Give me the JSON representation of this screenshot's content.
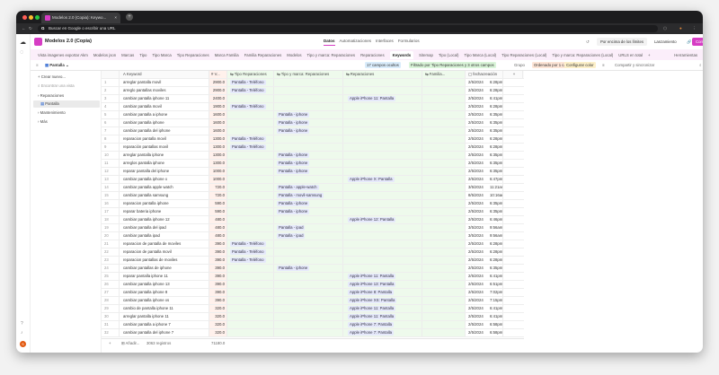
{
  "browser": {
    "tab_title": "Modelos 2.0 (Copia): Keywo...",
    "address": "Buscar en Google o escribir una URL"
  },
  "header": {
    "base_title": "Modelos 2.0 (Copia)",
    "tabs": [
      "Datos",
      "Automatizaciones",
      "Interfaces",
      "Formularios"
    ],
    "limit_label": "Por encima de los límites",
    "launch_label": "Lanzamiento",
    "share_label": "Compartir"
  },
  "tables": {
    "items": [
      "Vista imagenes exportar Akm",
      "Modelos json",
      "Marcas",
      "Tipo",
      "Tipo Marca",
      "Tipo Reparaciones",
      "Marca Familia",
      "Familia Reparaciones",
      "Modelos",
      "Tipo y marca: Reparaciones",
      "Reparaciones",
      "Keywords",
      "Sitemap",
      "Tipo (Local)",
      "Tipo Marca (Local)",
      "Tipo Reparaciones (Local)",
      "Tipo y marca: Reparaciones (Local)",
      "URLS en total"
    ],
    "active": "Keywords",
    "tools_label": "Herramientas"
  },
  "toolbar": {
    "view_name": "Pantalla",
    "hidden": "17 campos ocultos",
    "filter": "Filtrado por Tipo Reparaciones y 3 otros campos",
    "group": "Grupo",
    "sort": "Ordenado por 1 campo",
    "color": "Configurar color",
    "share": "Compartir y sincronizar"
  },
  "sidebar": {
    "create": "Crear nuevo...",
    "search": "Encontrar una vista",
    "groups": [
      "Reparaciones",
      "Mantenimiento",
      "Más"
    ],
    "active_view": "Pantalla",
    "avatar": "S"
  },
  "columns": [
    "Keyword",
    "V...",
    "Tipo Reparaciones",
    "Tipo y marca: Reparaciones",
    "Reparaciones",
    "Familia...",
    "fechacreación"
  ],
  "rows": [
    [
      "arreglar pantalla movil",
      "2900.0",
      "Pantalla - Teléfono",
      "",
      "",
      "2/5/2024",
      "6:28pm"
    ],
    [
      "arreglo pantallas moviles",
      "2900.0",
      "Pantalla - Teléfono",
      "",
      "",
      "2/5/2024",
      "6:28pm"
    ],
    [
      "cambiar pantalla iphone 11",
      "2400.0",
      "",
      "",
      "Apple iPhone 11: Pantalla",
      "2/5/2024",
      "6:41pm"
    ],
    [
      "cambiar pantalla movil",
      "1900.0",
      "Pantalla - Teléfono",
      "",
      "",
      "2/5/2024",
      "6:28pm"
    ],
    [
      "cambiar pantalla a iphone",
      "1600.0",
      "",
      "Pantalla - iphone",
      "",
      "2/5/2024",
      "6:35pm"
    ],
    [
      "cambiar pantalla iphone",
      "1600.0",
      "",
      "Pantalla - iphone",
      "",
      "2/5/2024",
      "6:35pm"
    ],
    [
      "cambiar pantalla del iphone",
      "1600.0",
      "",
      "Pantalla - iphone",
      "",
      "2/5/2024",
      "6:35pm"
    ],
    [
      "reparacion pantalla movil",
      "1300.0",
      "Pantalla - Teléfono",
      "",
      "",
      "2/5/2024",
      "6:28pm"
    ],
    [
      "reparación pantallas movil",
      "1300.0",
      "Pantalla - Teléfono",
      "",
      "",
      "2/5/2024",
      "6:28pm"
    ],
    [
      "arreglar pantalla iphone",
      "1300.0",
      "",
      "Pantalla - iphone",
      "",
      "2/5/2024",
      "6:35pm"
    ],
    [
      "arreglos pantalla iphone",
      "1300.0",
      "",
      "Pantalla - iphone",
      "",
      "2/5/2024",
      "6:35pm"
    ],
    [
      "reparar pantalla del iphone",
      "1000.0",
      "",
      "Pantalla - iphone",
      "",
      "2/5/2024",
      "6:35pm"
    ],
    [
      "cambiar pantalla iphone x",
      "1000.0",
      "",
      "",
      "Apple iPhone X: Pantalla",
      "2/5/2024",
      "6:47pm"
    ],
    [
      "cambiar pantalla apple watch",
      "720.0",
      "",
      "Pantalla - apple-watch",
      "",
      "3/5/2024",
      "11:21am"
    ],
    [
      "cambiar pantalla samsung",
      "720.0",
      "",
      "Pantalla - movil-samsung",
      "",
      "8/5/2024",
      "10:16am"
    ],
    [
      "reparacion pantalla iphone",
      "590.0",
      "",
      "Pantalla - iphone",
      "",
      "2/5/2024",
      "6:35pm"
    ],
    [
      "reparar bateria iphone",
      "590.0",
      "",
      "Pantalla - iphone",
      "",
      "2/5/2024",
      "6:35pm"
    ],
    [
      "cambiar pantalla iphone 12",
      "480.0",
      "",
      "",
      "Apple iPhone 12: Pantalla",
      "2/5/2024",
      "6:46pm"
    ],
    [
      "cambiar pantalla del ipad",
      "480.0",
      "",
      "Pantalla - ipad",
      "",
      "3/5/2024",
      "9:56am"
    ],
    [
      "cambiar pantalla ipad",
      "480.0",
      "",
      "Pantalla - ipad",
      "",
      "3/5/2024",
      "9:56am"
    ],
    [
      "reparacion de pantalla de moviles",
      "390.0",
      "Pantalla - Teléfono",
      "",
      "",
      "2/5/2024",
      "6:28pm"
    ],
    [
      "reparacion de pantalla movil",
      "390.0",
      "Pantalla - Teléfono",
      "",
      "",
      "2/5/2024",
      "6:28pm"
    ],
    [
      "reparacion pantallas de moviles",
      "390.0",
      "Pantalla - Teléfono",
      "",
      "",
      "2/5/2024",
      "6:28pm"
    ],
    [
      "cambiar pantallas de iphone",
      "390.0",
      "",
      "Pantalla - iphone",
      "",
      "2/5/2024",
      "6:35pm"
    ],
    [
      "reparar pantalla iphone 11",
      "390.0",
      "",
      "",
      "Apple iPhone 11: Pantalla",
      "2/5/2024",
      "6:41pm"
    ],
    [
      "cambiar pantalla iphone 13",
      "390.0",
      "",
      "",
      "Apple iPhone 13: Pantalla",
      "2/5/2024",
      "6:51pm"
    ],
    [
      "cambiar pantalla iphone 8",
      "390.0",
      "",
      "",
      "Apple iPhone 8: Pantalla",
      "2/5/2024",
      "7:02pm"
    ],
    [
      "cambiar pantalla iphone xs",
      "390.0",
      "",
      "",
      "Apple iPhone XS: Pantalla",
      "2/5/2024",
      "7:15pm"
    ],
    [
      "cambio de pantalla iphone 11",
      "320.0",
      "",
      "",
      "Apple iPhone 11: Pantalla",
      "2/5/2024",
      "6:41pm"
    ],
    [
      "arreglar pantalla iphone 11",
      "320.0",
      "",
      "",
      "Apple iPhone 11: Pantalla",
      "2/5/2024",
      "6:41pm"
    ],
    [
      "cambiar pantalla a iphone 7",
      "320.0",
      "",
      "",
      "Apple iPhone 7: Pantalla",
      "2/5/2024",
      "6:58pm"
    ],
    [
      "cambiar pantalla del iphone 7",
      "320.0",
      "",
      "",
      "Apple iPhone 7: Pantalla",
      "2/5/2024",
      "6:58pm"
    ]
  ],
  "footer": {
    "add_label": "Añadir...",
    "records": "3063 registros",
    "sum": "71180.0"
  },
  "colors": {
    "accent": "#d63dc4",
    "value_col": "#fff1ec",
    "linked_col": "#eefaec",
    "pill": "#e6e9fb"
  }
}
